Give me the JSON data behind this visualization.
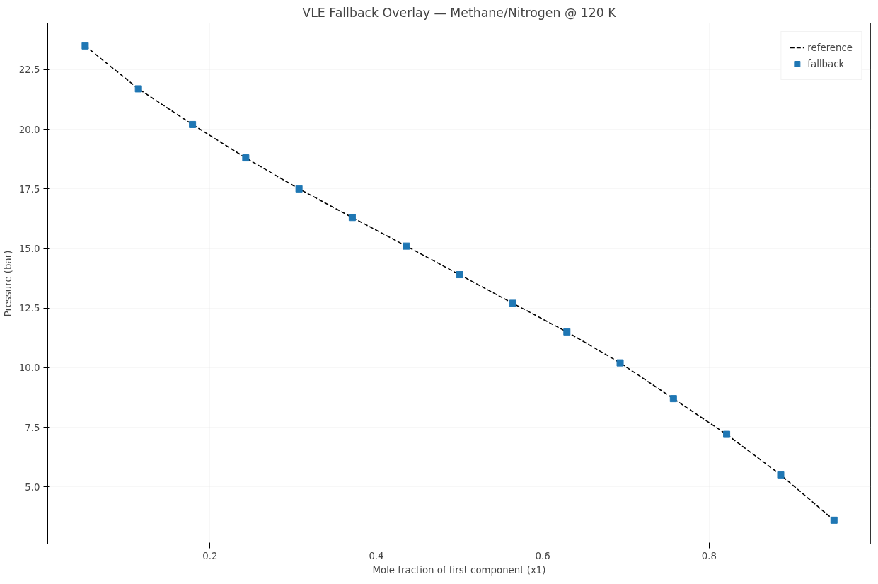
{
  "chart_data": {
    "type": "line",
    "title": "VLE Fallback Overlay — Methane/Nitrogen @ 120 K",
    "xlabel": "Mole fraction of first component (x1)",
    "ylabel": "Pressure (bar)",
    "x": [
      0.05,
      0.114,
      0.179,
      0.243,
      0.307,
      0.371,
      0.436,
      0.5,
      0.564,
      0.629,
      0.693,
      0.757,
      0.821,
      0.886,
      0.95
    ],
    "series": [
      {
        "name": "reference",
        "color": "#000000",
        "line_style": "dashed",
        "marker": "none",
        "values": [
          23.5,
          21.7,
          20.2,
          18.8,
          17.5,
          16.3,
          15.1,
          13.9,
          12.7,
          11.5,
          10.2,
          8.7,
          7.2,
          5.5,
          3.6
        ]
      },
      {
        "name": "fallback",
        "type": "scatter",
        "color": "#1f77b4",
        "marker": "square",
        "values": [
          23.5,
          21.7,
          20.2,
          18.8,
          17.5,
          16.3,
          15.1,
          13.9,
          12.7,
          11.5,
          10.2,
          8.7,
          7.2,
          5.5,
          3.6
        ]
      }
    ],
    "xlim": [
      0.005,
      0.994
    ],
    "ylim": [
      2.6,
      24.46
    ],
    "xticks": [
      {
        "value": 0.2,
        "label": "0.2"
      },
      {
        "value": 0.4,
        "label": "0.4"
      },
      {
        "value": 0.6,
        "label": "0.6"
      },
      {
        "value": 0.8,
        "label": "0.8"
      }
    ],
    "yticks": [
      {
        "value": 5,
        "label": "5.0"
      },
      {
        "value": 7.5,
        "label": "7.5"
      },
      {
        "value": 10,
        "label": "10.0"
      },
      {
        "value": 12.5,
        "label": "12.5"
      },
      {
        "value": 15,
        "label": "15.0"
      },
      {
        "value": 17.5,
        "label": "17.5"
      },
      {
        "value": 20,
        "label": "20.0"
      },
      {
        "value": 22.5,
        "label": "22.5"
      }
    ],
    "grid": true,
    "legend": "top right"
  }
}
